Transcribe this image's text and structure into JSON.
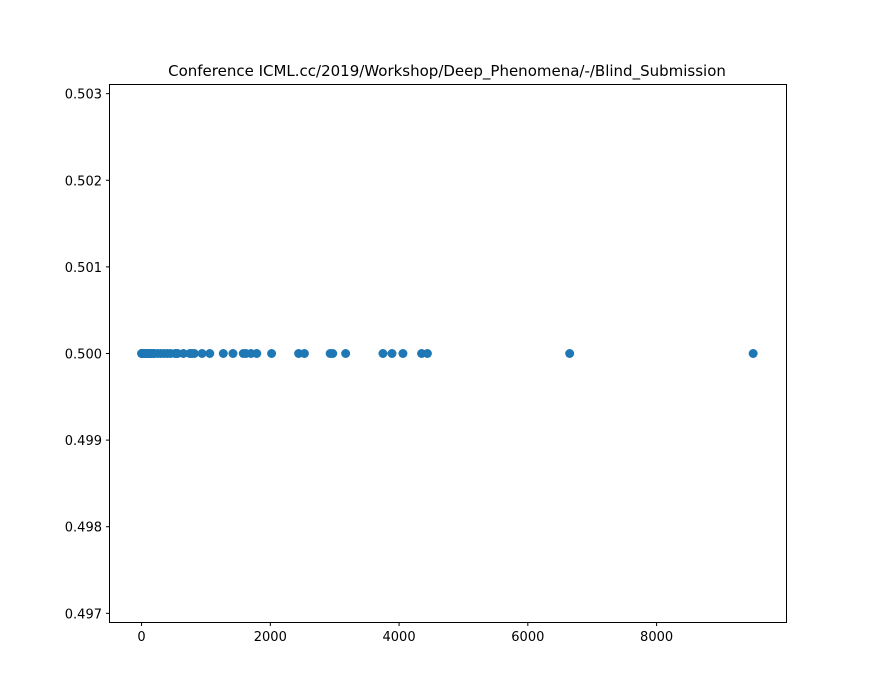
{
  "chart_data": {
    "type": "scatter",
    "title": "Conference ICML.cc/2019/Workshop/Deep_Phenomena/-/Blind_Submission",
    "xlabel": "",
    "ylabel": "",
    "xlim": [
      -490,
      10010
    ],
    "ylim": [
      0.4969,
      0.5031
    ],
    "x_ticks": [
      0,
      2000,
      4000,
      6000,
      8000
    ],
    "x_tick_labels": [
      "0",
      "2000",
      "4000",
      "6000",
      "8000"
    ],
    "y_ticks": [
      0.497,
      0.498,
      0.499,
      0.5,
      0.501,
      0.502,
      0.503
    ],
    "y_tick_labels": [
      "0.497",
      "0.498",
      "0.499",
      "0.500",
      "0.501",
      "0.502",
      "0.503"
    ],
    "grid": false,
    "marker_color": "#1f77b4",
    "series": [
      {
        "x": [
          0,
          5,
          10,
          15,
          20,
          30,
          40,
          50,
          60,
          70,
          80,
          100,
          120,
          140,
          160,
          180,
          200,
          250,
          300,
          350,
          400,
          450,
          520,
          540,
          560,
          650,
          750,
          780,
          820,
          940,
          1060,
          1270,
          1420,
          1580,
          1620,
          1700,
          1790,
          2020,
          2440,
          2530,
          2930,
          2970,
          3170,
          3750,
          3890,
          4060,
          4350,
          4440,
          6650,
          9500
        ],
        "y": [
          0.5,
          0.5,
          0.5,
          0.5,
          0.5,
          0.5,
          0.5,
          0.5,
          0.5,
          0.5,
          0.5,
          0.5,
          0.5,
          0.5,
          0.5,
          0.5,
          0.5,
          0.5,
          0.5,
          0.5,
          0.5,
          0.5,
          0.5,
          0.5,
          0.5,
          0.5,
          0.5,
          0.5,
          0.5,
          0.5,
          0.5,
          0.5,
          0.5,
          0.5,
          0.5,
          0.5,
          0.5,
          0.5,
          0.5,
          0.5,
          0.5,
          0.5,
          0.5,
          0.5,
          0.5,
          0.5,
          0.5,
          0.5,
          0.5,
          0.5
        ]
      }
    ]
  }
}
